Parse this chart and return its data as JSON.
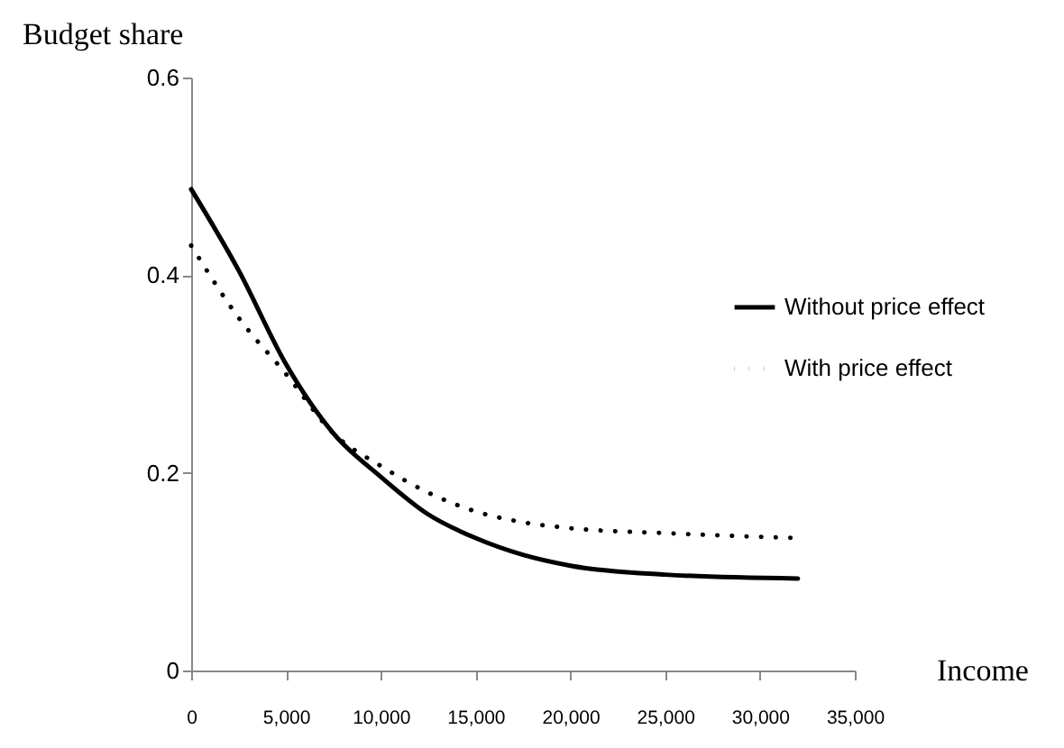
{
  "chart_data": {
    "type": "line",
    "xlabel": "Income",
    "ylabel": "Budget share",
    "xlim": [
      0,
      35000
    ],
    "xticks": [
      {
        "value": 0,
        "label": "0"
      },
      {
        "value": 5000,
        "label": "5,000"
      },
      {
        "value": 10000,
        "label": "10,000"
      },
      {
        "value": 15000,
        "label": "15,000"
      },
      {
        "value": 20000,
        "label": "20,000"
      },
      {
        "value": 25000,
        "label": "25,000"
      },
      {
        "value": 30000,
        "label": "30,000"
      },
      {
        "value": 35000,
        "label": "35,000"
      }
    ],
    "ylim": [
      0,
      0.6
    ],
    "yticks": [
      {
        "value": 0,
        "label": "0"
      },
      0.2,
      0.4,
      0.6
    ],
    "grid": false,
    "legend": "right",
    "marker": "none",
    "x": [
      0,
      2500,
      5000,
      7500,
      10000,
      12500,
      15000,
      17500,
      20000,
      25000,
      32000
    ],
    "series": [
      {
        "name": "Without price effect",
        "color": "#000000",
        "line_style": "solid",
        "values": [
          0.487,
          0.405,
          0.31,
          0.24,
          0.196,
          0.158,
          0.134,
          0.117,
          0.106,
          0.097,
          0.093
        ]
      },
      {
        "name": "With price effect",
        "color": "#000000",
        "line_style": "dotted",
        "values": [
          0.43,
          0.357,
          0.3,
          0.24,
          0.207,
          0.18,
          0.161,
          0.15,
          0.144,
          0.139,
          0.134
        ]
      }
    ]
  }
}
